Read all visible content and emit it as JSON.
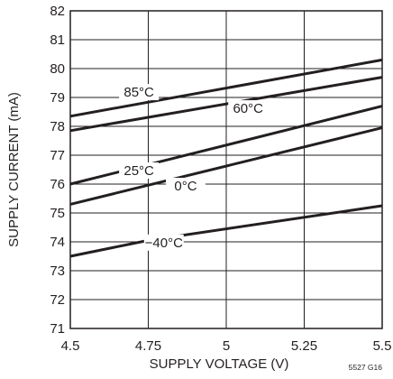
{
  "chart_data": {
    "type": "line",
    "xlabel": "SUPPLY VOLTAGE (V)",
    "ylabel": "SUPPLY CURRENT (mA)",
    "xlim": [
      4.5,
      5.5
    ],
    "ylim": [
      71,
      82
    ],
    "x_ticks": [
      "4.5",
      "4.75",
      "5",
      "5.25",
      "5.5"
    ],
    "y_ticks": [
      "71",
      "72",
      "73",
      "74",
      "75",
      "76",
      "77",
      "78",
      "79",
      "80",
      "81",
      "82"
    ],
    "grid": true,
    "figure_code": "5527 G16",
    "line_color": "#231f20",
    "grid_color": "#231f20",
    "series": [
      {
        "name": "85°C",
        "x": [
          4.5,
          5.5
        ],
        "y": [
          78.35,
          80.3
        ]
      },
      {
        "name": "60°C",
        "x": [
          4.5,
          5.5
        ],
        "y": [
          77.85,
          79.7
        ]
      },
      {
        "name": "25°C",
        "x": [
          4.5,
          5.5
        ],
        "y": [
          76.0,
          78.7
        ]
      },
      {
        "name": "0°C",
        "x": [
          4.5,
          5.5
        ],
        "y": [
          75.3,
          77.95
        ]
      },
      {
        "name": "−40°C",
        "x": [
          4.5,
          4.75,
          5.5
        ],
        "y": [
          73.5,
          74.05,
          75.25
        ]
      }
    ]
  }
}
